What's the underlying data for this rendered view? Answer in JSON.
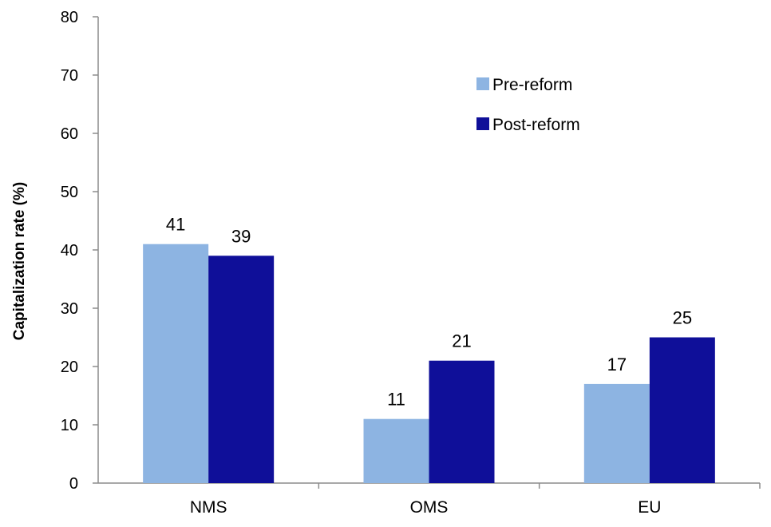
{
  "chart_data": {
    "type": "bar",
    "title": "",
    "xlabel": "",
    "ylabel": "Capitalization rate (%)",
    "ylim": [
      0,
      80
    ],
    "yticks": [
      0,
      10,
      20,
      30,
      40,
      50,
      60,
      70,
      80
    ],
    "categories": [
      "NMS",
      "OMS",
      "EU"
    ],
    "series": [
      {
        "name": "Pre-reform",
        "values": [
          41,
          11,
          17
        ],
        "color": "#8db4e2"
      },
      {
        "name": "Post-reform",
        "values": [
          39,
          21,
          25
        ],
        "color": "#0f0f99"
      }
    ],
    "data_labels": [
      [
        "41",
        "11",
        "17"
      ],
      [
        "39",
        "21",
        "25"
      ]
    ],
    "legend_position": "upper-right",
    "grid": false
  }
}
